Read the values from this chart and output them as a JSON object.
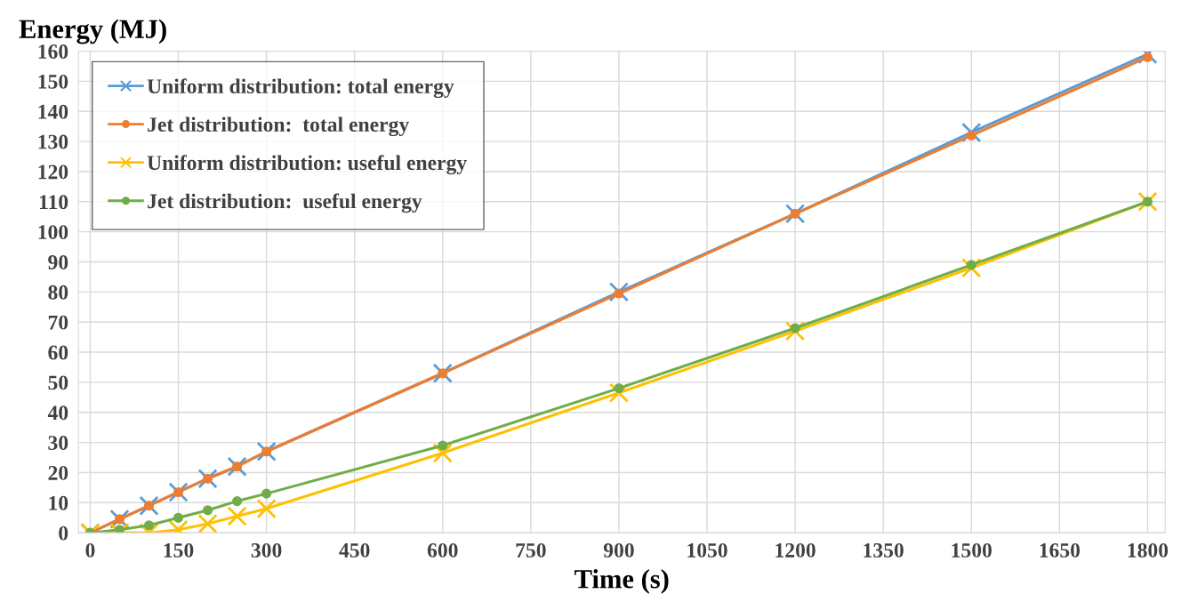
{
  "chart_data": {
    "type": "line",
    "ylabel": "Energy (MJ)",
    "xlabel": "Time (s)",
    "x": [
      0,
      50,
      100,
      150,
      200,
      250,
      300,
      600,
      900,
      1200,
      1500,
      1800
    ],
    "series": [
      {
        "name": "Uniform distribution: total energy",
        "color": "#5b9bd5",
        "marker": "cross",
        "values": [
          0,
          4.5,
          9,
          13.5,
          18,
          22,
          27,
          53,
          80,
          106,
          133,
          159
        ]
      },
      {
        "name": "Jet distribution:  total energy",
        "color": "#ed7d31",
        "marker": "circle",
        "values": [
          0,
          4.5,
          9,
          13.5,
          18,
          22,
          27,
          53,
          79.5,
          106,
          132,
          158
        ]
      },
      {
        "name": "Uniform distribution: useful energy",
        "color": "#ffc000",
        "marker": "cross",
        "values": [
          0,
          0,
          0,
          1,
          3,
          5.5,
          8,
          26.5,
          46.5,
          67,
          88,
          110
        ]
      },
      {
        "name": "Jet distribution:  useful energy",
        "color": "#70ad47",
        "marker": "circle",
        "values": [
          0,
          1,
          2.5,
          5,
          7.5,
          10.5,
          13,
          29,
          48,
          68,
          89,
          110
        ]
      }
    ],
    "xlim": [
      -20,
      1830
    ],
    "xticks": [
      0,
      150,
      300,
      450,
      600,
      750,
      900,
      1050,
      1200,
      1350,
      1500,
      1650,
      1800
    ],
    "ylim": [
      0,
      160
    ],
    "yticks": [
      0,
      10,
      20,
      30,
      40,
      50,
      60,
      70,
      80,
      90,
      100,
      110,
      120,
      130,
      140,
      150,
      160
    ],
    "grid": true,
    "legend": "top left",
    "line_style": "solid"
  }
}
